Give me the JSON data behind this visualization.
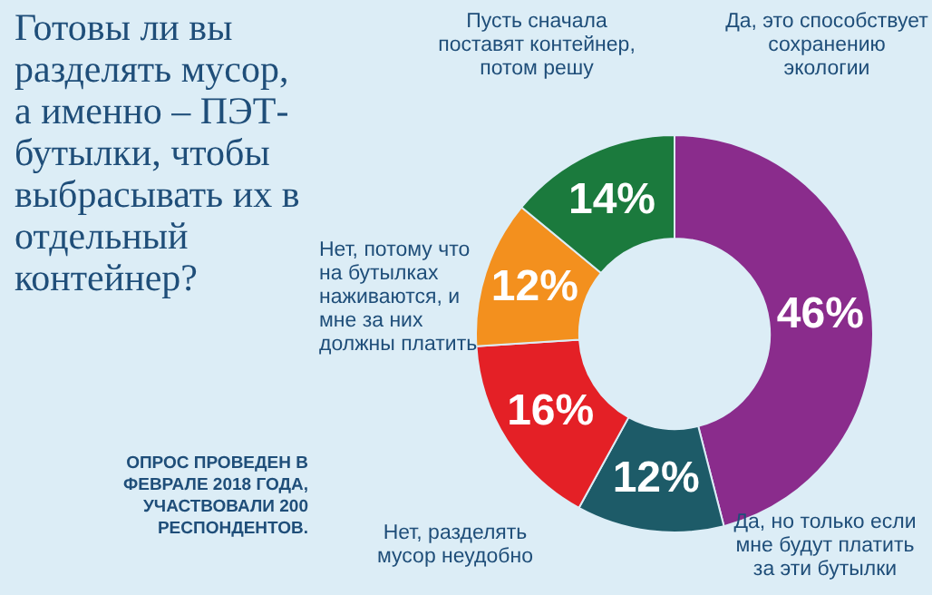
{
  "chart_data": {
    "type": "donut",
    "title": "Готовы ли вы разделять мусор, а именно – ПЭТ-бутылки, чтобы выбрасывать их в отдельный контейнер?",
    "categories": [
      "Да, это способствует сохранению экологии",
      "Да, но только если мне будут платить за эти бутылки",
      "Нет, разделять мусор неудобно",
      "Нет, потому что на бутылках наживаются, и мне за них должны платить",
      "Пусть сначала поставят контейнер, потом решу"
    ],
    "values": [
      46,
      12,
      16,
      12,
      14
    ],
    "colors": [
      "#8a2c8c",
      "#1d5b68",
      "#e42026",
      "#f3901e",
      "#1b7a3d"
    ],
    "value_labels": [
      "46%",
      "12%",
      "16%",
      "12%",
      "14%"
    ],
    "annotations": [
      "ОПРОС ПРОВЕДЕН В ФЕВРАЛЕ 2018 ГОДА, УЧАСТВОВАЛИ 200 РЕСПОНДЕНТОВ."
    ]
  }
}
